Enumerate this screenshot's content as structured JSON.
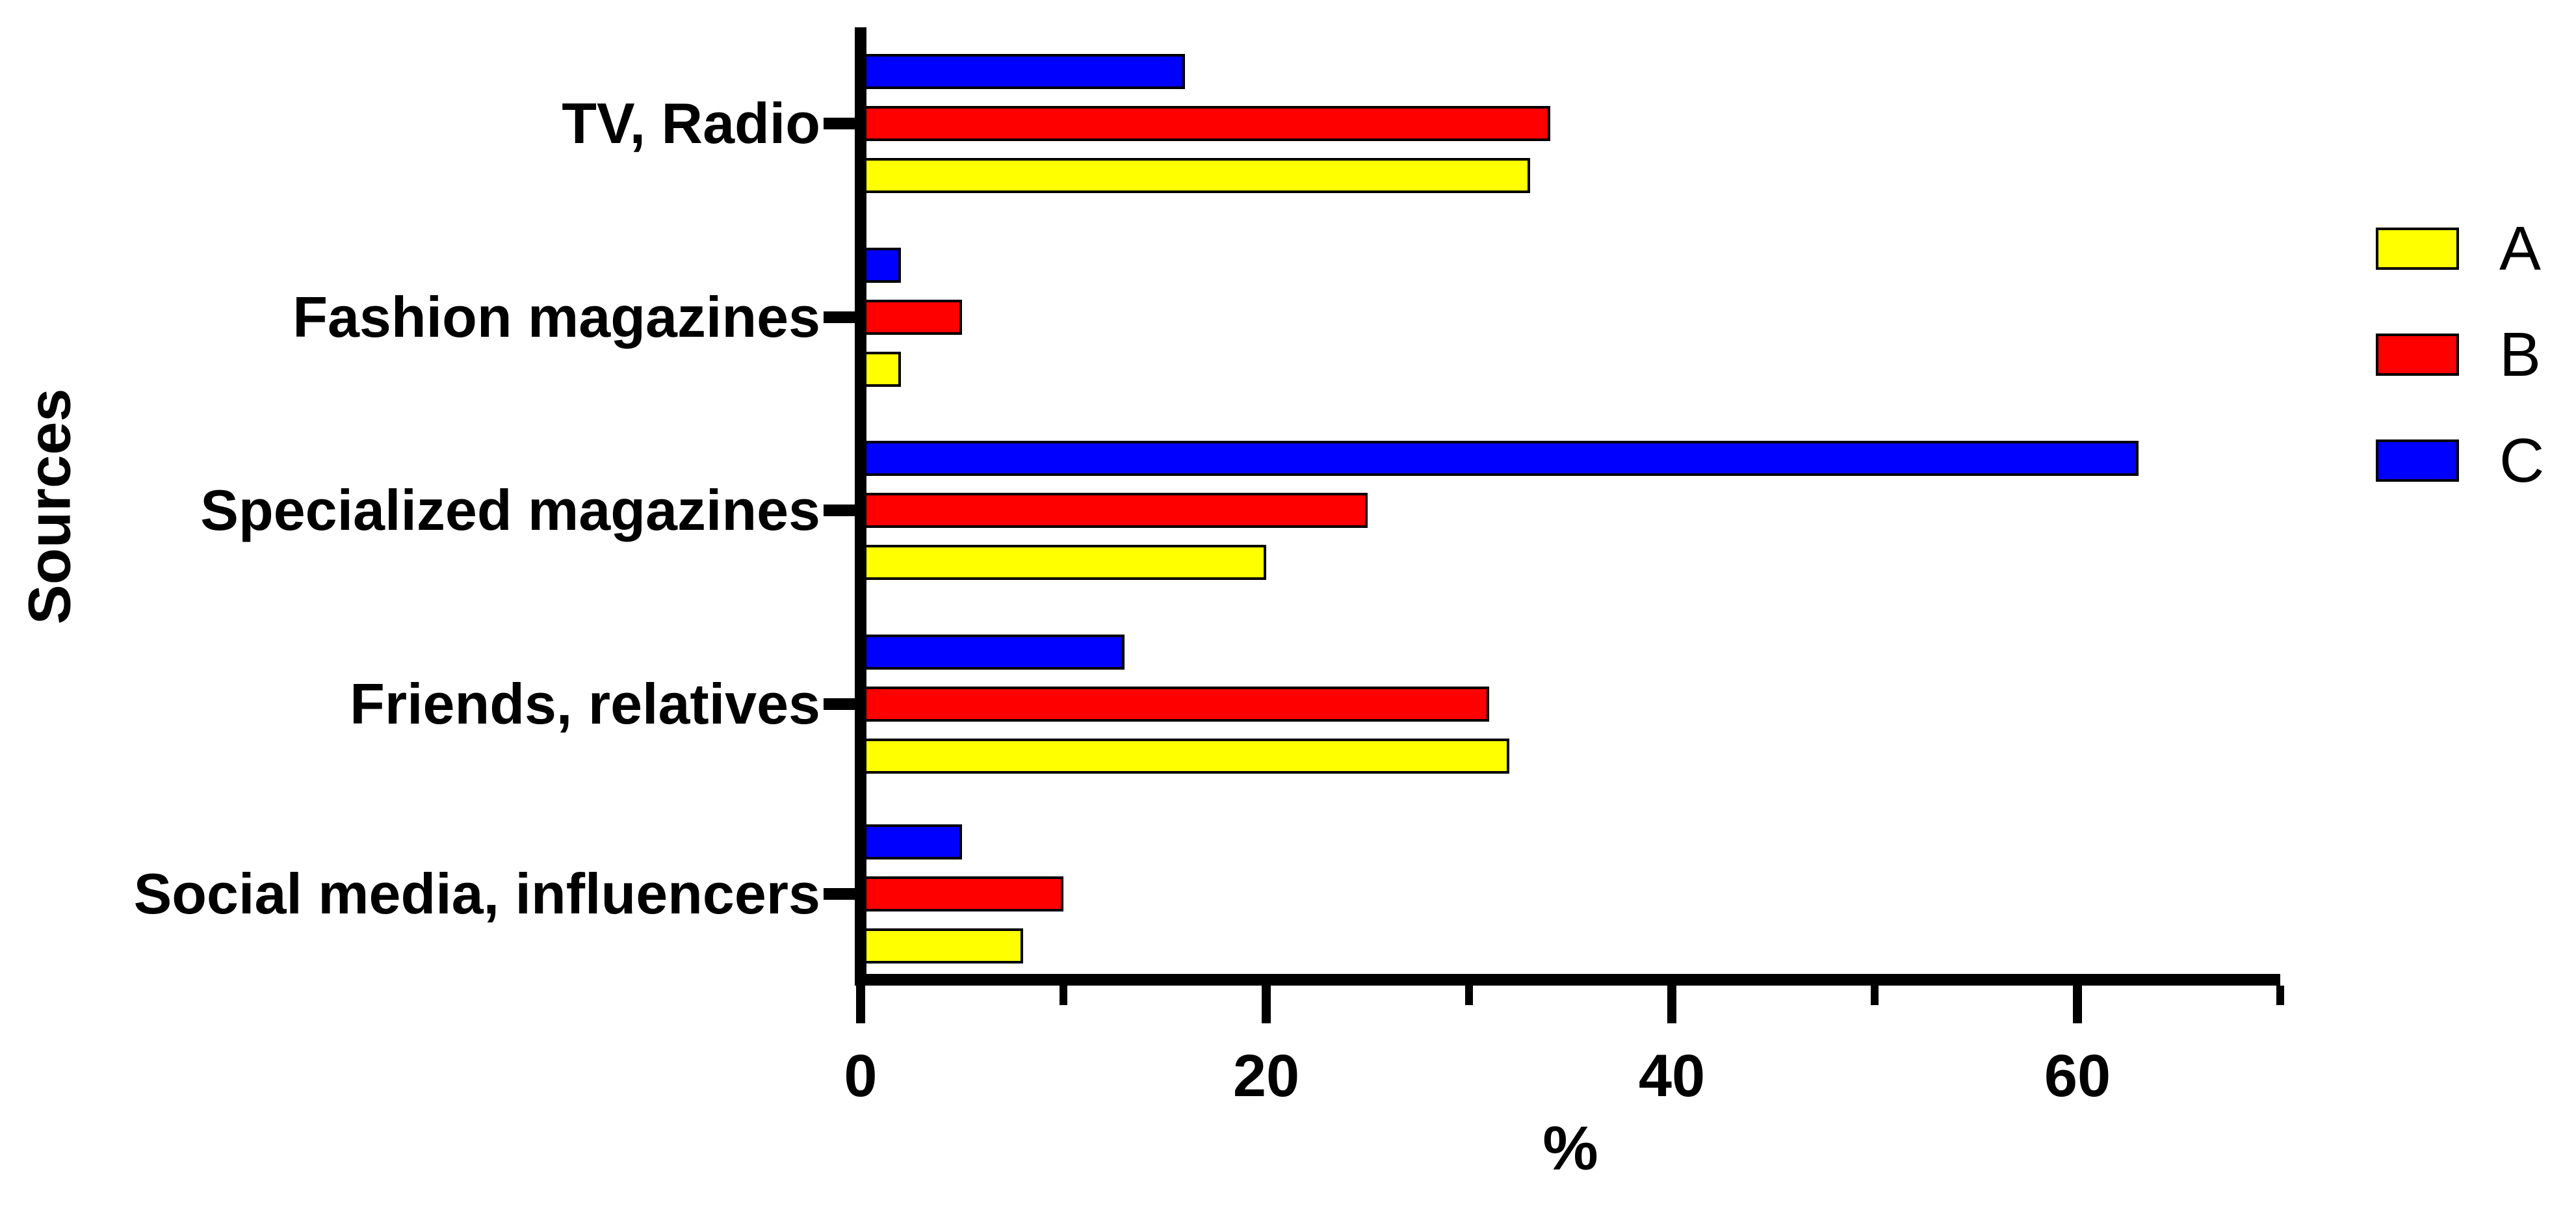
{
  "figure": {
    "background": "#ffffff",
    "text_color": "#000000"
  },
  "chart_data": {
    "type": "bar",
    "orientation": "horizontal",
    "title": "",
    "categories": [
      "TV, Radio",
      "Fashion magazines",
      "Specialized magazines",
      "Friends, relatives",
      "Social media, influencers"
    ],
    "series": [
      {
        "name": "A",
        "color": "#ffff00",
        "values": [
          33,
          2,
          20,
          32,
          8
        ]
      },
      {
        "name": "B",
        "color": "#ff0000",
        "values": [
          34,
          5,
          25,
          31,
          10
        ]
      },
      {
        "name": "C",
        "color": "#0000ff",
        "values": [
          16,
          2,
          63,
          13,
          5
        ]
      }
    ],
    "bar_order_top_to_bottom": [
      "C",
      "B",
      "A"
    ],
    "xlabel": "%",
    "ylabel": "Sources",
    "xlim": [
      0,
      70
    ],
    "x_major_ticks": [
      0,
      20,
      40,
      60
    ],
    "x_minor_ticks": [
      10,
      30,
      50,
      70
    ],
    "grid": false,
    "legend_position": "right",
    "bar_border_color": "#000000",
    "axis_color": "#000000"
  },
  "legend": {
    "items": [
      {
        "label": "A",
        "color": "#ffff00"
      },
      {
        "label": "B",
        "color": "#ff0000"
      },
      {
        "label": "C",
        "color": "#0000ff"
      }
    ]
  }
}
